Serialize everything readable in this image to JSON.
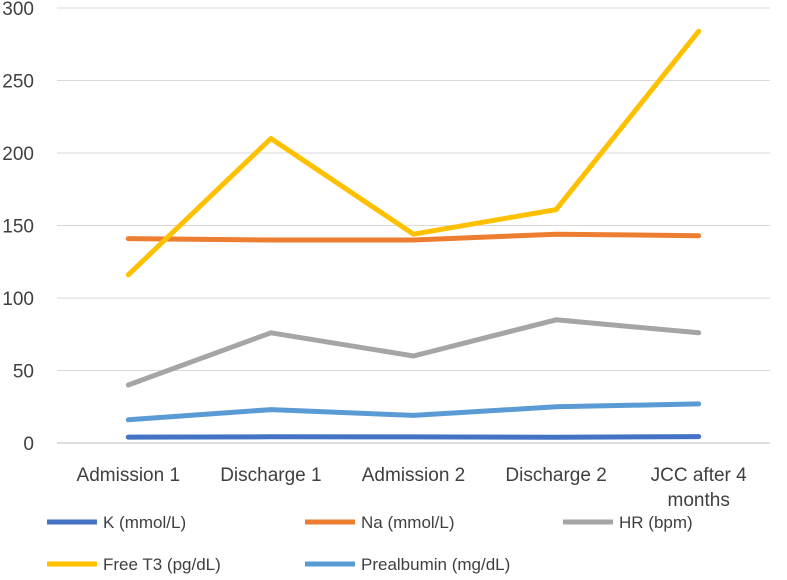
{
  "chart_data": {
    "type": "line",
    "categories": [
      "Admission 1",
      "Discharge 1",
      "Admission 2",
      "Discharge 2",
      "JCC after 4 months"
    ],
    "category_labels": [
      [
        "Admission 1"
      ],
      [
        "Discharge 1"
      ],
      [
        "Admission 2"
      ],
      [
        "Discharge 2"
      ],
      [
        "JCC after 4",
        "months"
      ]
    ],
    "ylim": [
      0,
      300
    ],
    "yticks": [
      0,
      50,
      100,
      150,
      200,
      250,
      300
    ],
    "grid": true,
    "legend_position": "bottom",
    "series": [
      {
        "name": "K (mmol/L)",
        "color": "#4472C4",
        "values": [
          4.1,
          4.3,
          4.2,
          3.9,
          4.4
        ]
      },
      {
        "name": "Na (mmol/L)",
        "color": "#ED7D31",
        "values": [
          141,
          140,
          140,
          144,
          143
        ]
      },
      {
        "name": "HR (bpm)",
        "color": "#A5A5A5",
        "values": [
          40,
          76,
          60,
          85,
          76
        ]
      },
      {
        "name": "Free T3 (pg/dL)",
        "color": "#FFC000",
        "values": [
          116,
          210,
          144,
          161,
          284
        ]
      },
      {
        "name": "Prealbumin (mg/dL)",
        "color": "#5B9BD5",
        "values": [
          16,
          23,
          19,
          25,
          27
        ]
      }
    ]
  }
}
